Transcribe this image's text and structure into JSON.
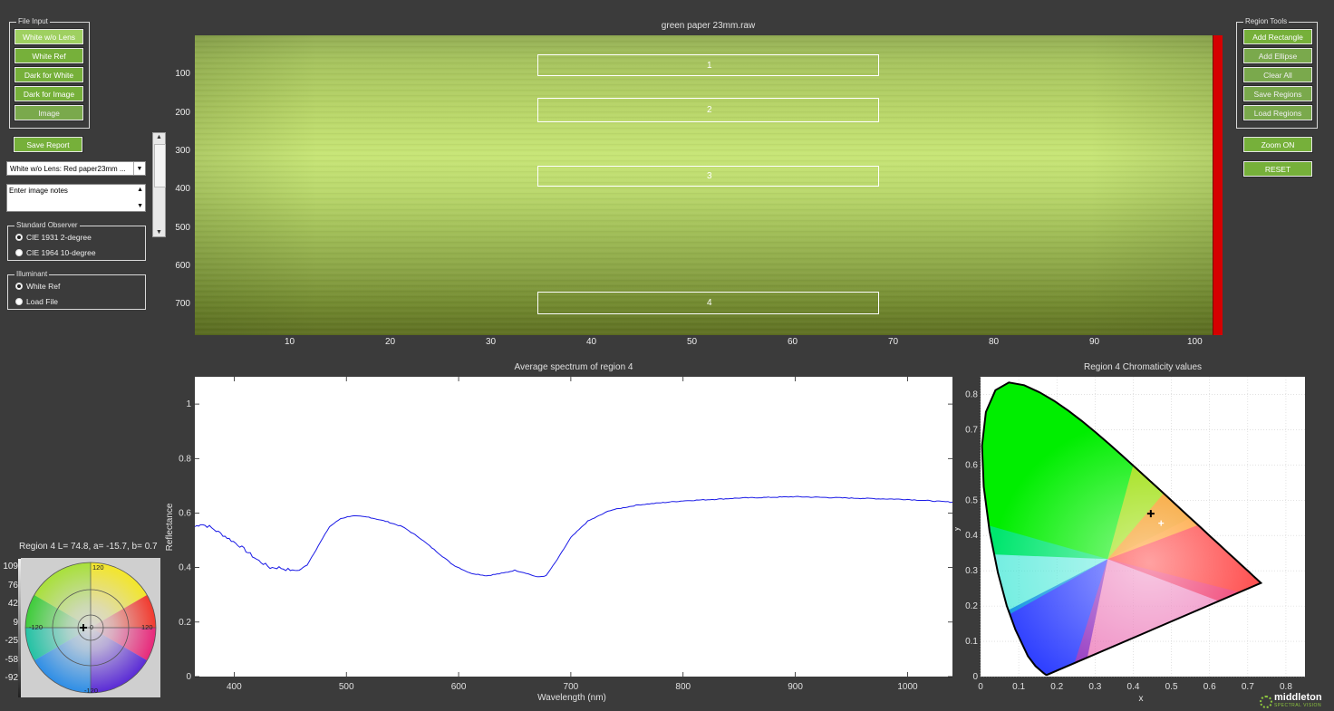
{
  "file_input": {
    "legend": "File Input",
    "buttons": [
      "White w/o Lens",
      "White Ref",
      "Dark for White",
      "Dark for Image",
      "Image"
    ]
  },
  "save_report": "Save Report",
  "file_select": "White w/o Lens: Red  paper23mm ...",
  "notes_placeholder": "Enter image notes",
  "standard_observer": {
    "legend": "Standard Observer",
    "options": [
      "CIE 1931 2-degree",
      "CIE 1964 10-degree"
    ],
    "selected": 0
  },
  "illuminant": {
    "legend": "Illuminant",
    "options": [
      "White Ref",
      "Load File"
    ],
    "selected": 0
  },
  "region_tools": {
    "legend": "Region Tools",
    "buttons": [
      "Add Rectangle",
      "Add Ellipse",
      "Clear All",
      "Save Regions",
      "Load Regions"
    ]
  },
  "zoom_on": "Zoom ON",
  "reset": "RESET",
  "image_view": {
    "title": "green paper 23mm.raw",
    "y_ticks": [
      "100",
      "200",
      "300",
      "400",
      "500",
      "600",
      "700"
    ],
    "x_ticks": [
      "10",
      "20",
      "30",
      "40",
      "50",
      "60",
      "70",
      "80",
      "90",
      "100"
    ],
    "regions": [
      "1",
      "2",
      "3",
      "4"
    ]
  },
  "lab_readout": "Region 4 L= 74.8, a= -15.7, b= 0.7",
  "lab_wheel": {
    "l_scale": [
      "109",
      "76",
      "42",
      "9",
      "-25",
      "-58",
      "-92"
    ],
    "labels": {
      "top": "120",
      "bottom": "-120",
      "left": "-120",
      "right": "120",
      "center": "0"
    }
  },
  "chart_data": [
    {
      "type": "line",
      "title": "Average spectrum of region 4",
      "xlabel": "Wavelength (nm)",
      "ylabel": "Reflectance",
      "xlim": [
        365,
        1040
      ],
      "ylim": [
        0,
        1.1
      ],
      "x_ticks": [
        "400",
        "500",
        "600",
        "700",
        "800",
        "900",
        "1000"
      ],
      "y_ticks": [
        "0",
        "0.2",
        "0.4",
        "0.6",
        "0.8",
        "1"
      ],
      "color": "#1a1ae6",
      "series": [
        {
          "x": [
            365,
            370,
            378,
            390,
            405,
            420,
            432,
            440,
            450,
            458,
            465,
            475,
            485,
            495,
            505,
            520,
            535,
            550,
            565,
            580,
            595,
            610,
            625,
            640,
            650,
            660,
            670,
            678,
            688,
            700,
            715,
            735,
            760,
            800,
            850,
            900,
            950,
            1000,
            1040
          ],
          "y": [
            0.55,
            0.56,
            0.55,
            0.52,
            0.48,
            0.43,
            0.4,
            0.4,
            0.39,
            0.39,
            0.41,
            0.48,
            0.55,
            0.58,
            0.59,
            0.585,
            0.57,
            0.55,
            0.51,
            0.46,
            0.41,
            0.38,
            0.37,
            0.38,
            0.39,
            0.38,
            0.365,
            0.37,
            0.43,
            0.51,
            0.57,
            0.61,
            0.63,
            0.645,
            0.655,
            0.66,
            0.655,
            0.65,
            0.64
          ]
        }
      ]
    },
    {
      "type": "scatter",
      "title": "Region 4 Chromaticity values",
      "xlabel": "x",
      "ylabel": "y",
      "xlim": [
        0,
        0.85
      ],
      "ylim": [
        0,
        0.85
      ],
      "x_ticks": [
        "0",
        "0.1",
        "0.2",
        "0.3",
        "0.4",
        "0.5",
        "0.6",
        "0.7",
        "0.8"
      ],
      "y_ticks": [
        "0",
        "0.1",
        "0.2",
        "0.3",
        "0.4",
        "0.5",
        "0.6",
        "0.7",
        "0.8"
      ],
      "points": [
        {
          "x": 0.446,
          "y": 0.462,
          "marker": "black-plus"
        },
        {
          "x": 0.473,
          "y": 0.435,
          "marker": "white-plus"
        }
      ]
    }
  ],
  "logo": {
    "name": "middleton",
    "tagline": "SPECTRAL VISION"
  },
  "colors": {
    "background": "#3b3b3b",
    "button_green": "#76b03a",
    "spectrum_line": "#1a1ae6",
    "colorbar_red": "#d00000"
  }
}
